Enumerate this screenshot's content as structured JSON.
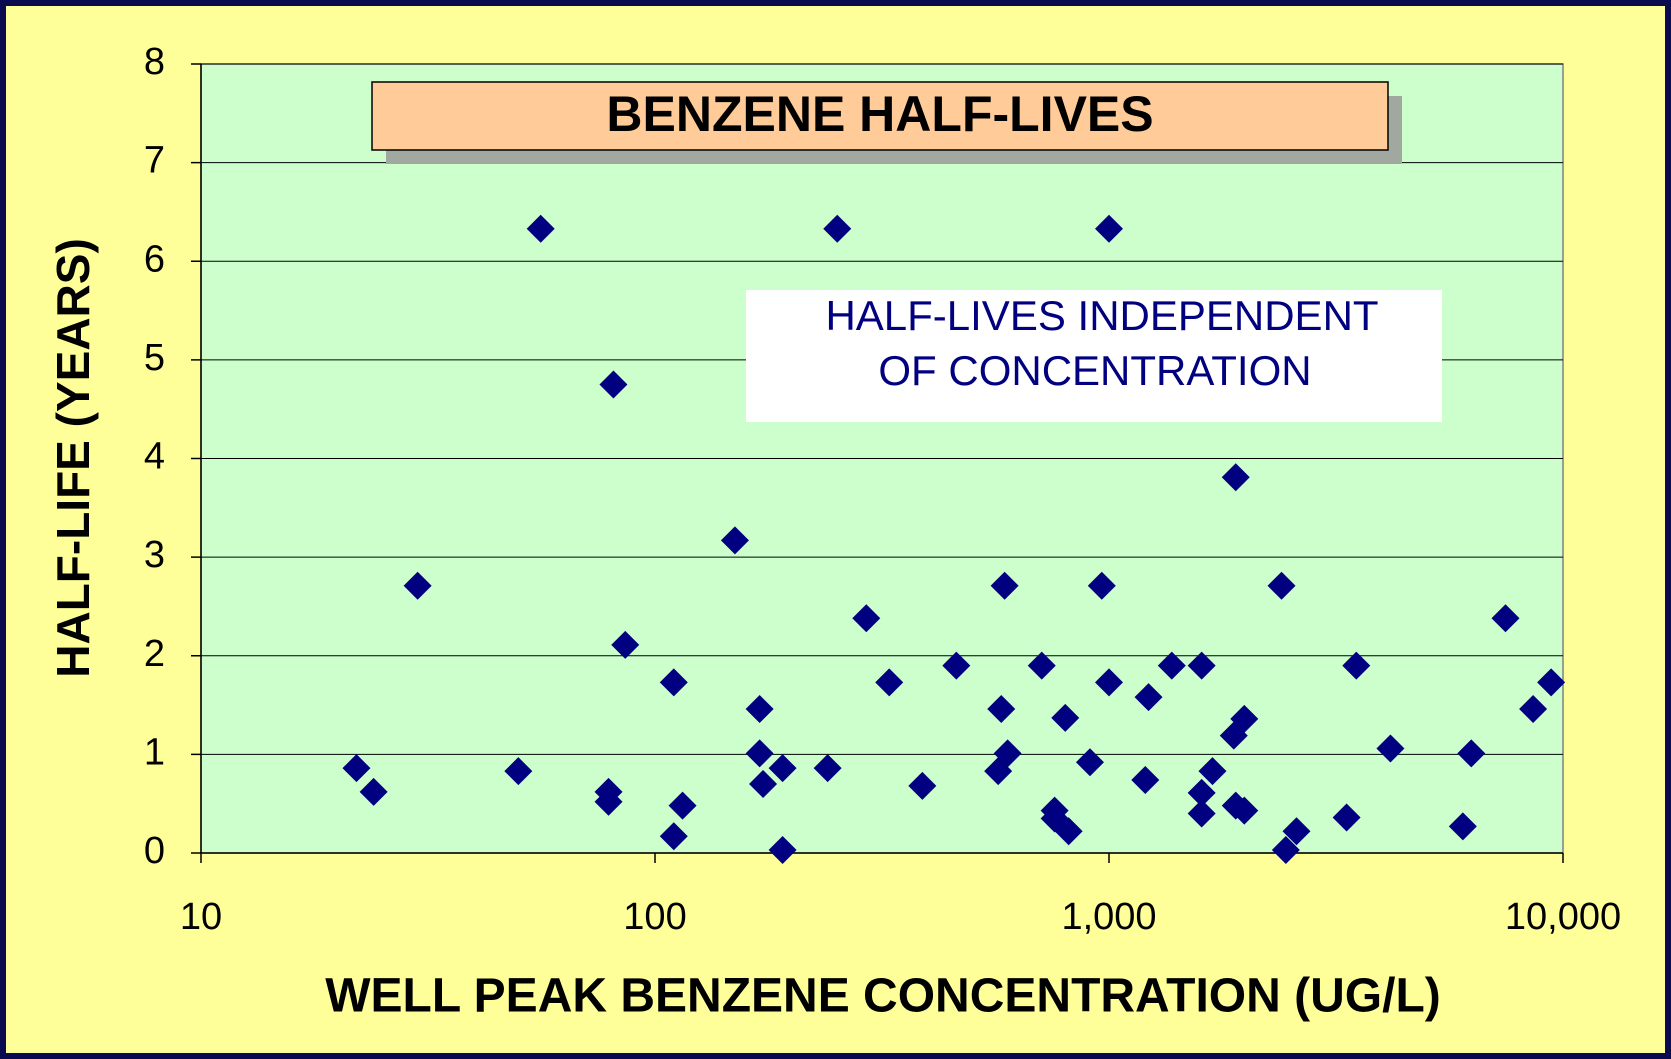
{
  "chart_data": {
    "type": "scatter",
    "title": "BENZENE HALF-LIVES",
    "annotation": [
      "HALF-LIVES INDEPENDENT",
      "OF CONCENTRATION"
    ],
    "xlabel": "WELL PEAK BENZENE CONCENTRATION (UG/L)",
    "ylabel": "HALF-LIFE (YEARS)",
    "xscale": "log",
    "xlim": [
      10,
      10000
    ],
    "xticks": [
      10,
      100,
      {
        "value": 1000,
        "label": "1,000"
      },
      {
        "value": 10000,
        "label": "10,000"
      }
    ],
    "ylim": [
      0,
      8
    ],
    "yticks": [
      0,
      1,
      2,
      3,
      4,
      5,
      6,
      7,
      8
    ],
    "grid": true,
    "series": [
      {
        "color": "#000080",
        "x": [
          22,
          24,
          30,
          50,
          56,
          79,
          79,
          81,
          86,
          110,
          115,
          110,
          150,
          170,
          170,
          173,
          191,
          191,
          240,
          252,
          292,
          328,
          388,
          461,
          570,
          579,
          589,
          598,
          711,
          759,
          759,
          801,
          815,
          908,
          964,
          1000,
          1000,
          1202,
          1222,
          1375,
          1600,
          1600,
          1600,
          1690,
          1883,
          1902,
          1902,
          1986,
          1986,
          2399,
          2452,
          2588,
          3337,
          3505,
          4168,
          6017,
          6280,
          7470,
          8593,
          9415
        ],
        "values": [
          0.86,
          0.62,
          2.71,
          0.83,
          6.33,
          0.62,
          0.52,
          4.75,
          2.11,
          1.73,
          0.48,
          0.17,
          3.17,
          1.46,
          1.01,
          0.7,
          0.86,
          0.03,
          0.86,
          6.33,
          2.38,
          1.73,
          0.68,
          1.9,
          0.83,
          1.46,
          2.71,
          1.01,
          1.9,
          0.43,
          0.35,
          1.37,
          0.22,
          0.92,
          2.71,
          6.33,
          1.73,
          0.74,
          1.58,
          1.9,
          1.9,
          0.61,
          0.4,
          0.83,
          1.19,
          3.81,
          0.48,
          1.36,
          0.43,
          2.71,
          0.03,
          0.22,
          0.36,
          1.9,
          1.06,
          0.27,
          1.01,
          2.38,
          1.46,
          1.73
        ]
      }
    ]
  }
}
